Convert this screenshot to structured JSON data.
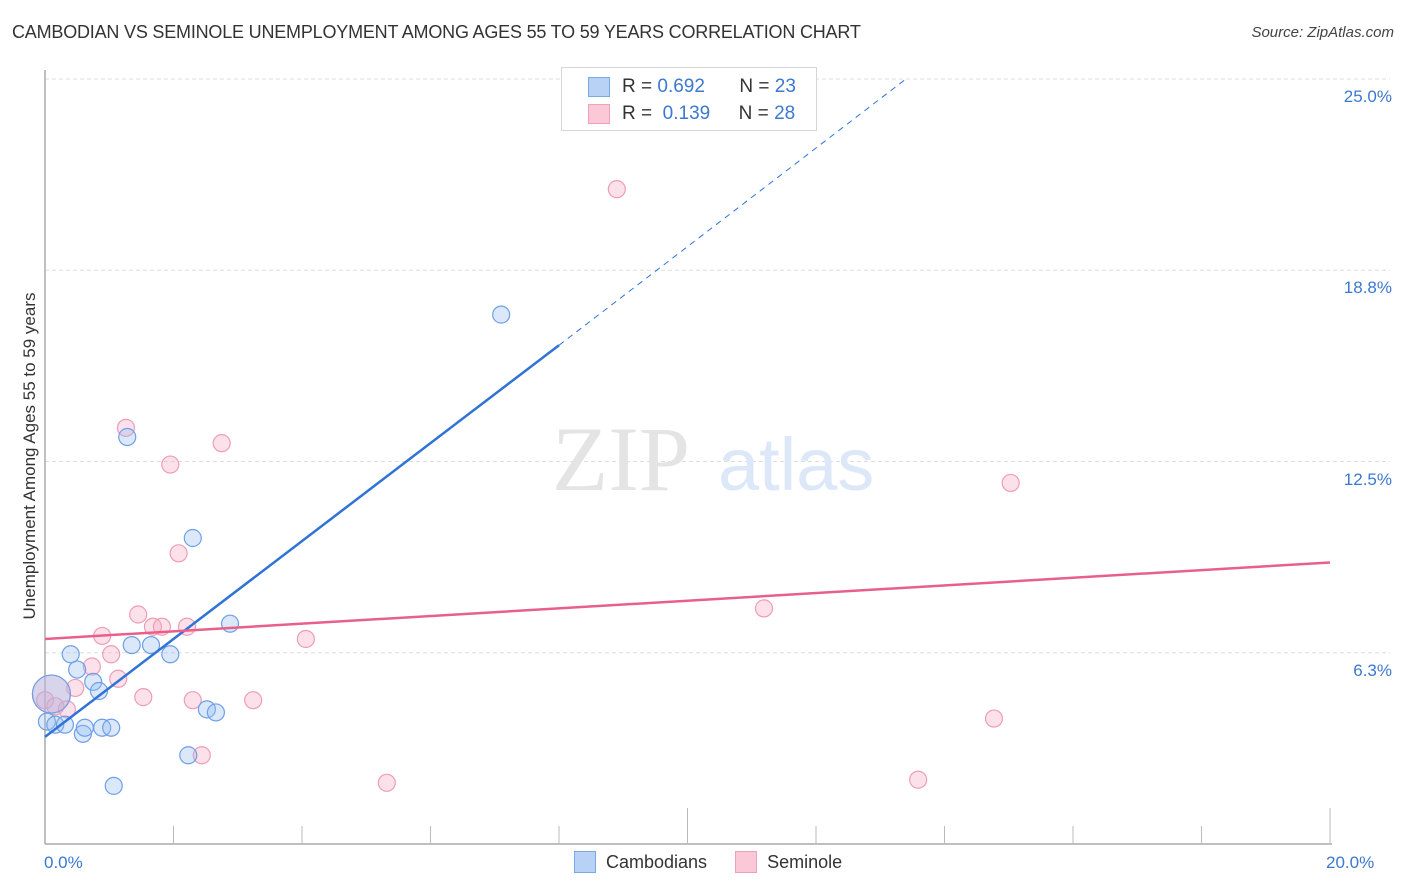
{
  "title": "CAMBODIAN VS SEMINOLE UNEMPLOYMENT AMONG AGES 55 TO 59 YEARS CORRELATION CHART",
  "source": "Source: ZipAtlas.com",
  "watermark": {
    "zip": "ZIP",
    "atlas": "atlas"
  },
  "colors": {
    "cambodians": "#7aa8e8",
    "seminole": "#f0a0b8",
    "cambodians_line": "#2f73d6",
    "seminole_line": "#e8608a",
    "tick_text": "#3b78d0"
  },
  "legend_top": [
    {
      "series": "Cambodians",
      "r_label": "R =",
      "r_value": "0.692",
      "n_label": "N =",
      "n_value": "23"
    },
    {
      "series": "Seminole",
      "r_label": "R =",
      "r_value": "0.139",
      "n_label": "N =",
      "n_value": "28"
    }
  ],
  "legend_bottom": [
    {
      "label": "Cambodians"
    },
    {
      "label": "Seminole"
    }
  ],
  "chart_data": {
    "type": "scatter",
    "title": "CAMBODIAN VS SEMINOLE UNEMPLOYMENT AMONG AGES 55 TO 59 YEARS CORRELATION CHART",
    "xlabel": "",
    "ylabel": "Unemployment Among Ages 55 to 59 years",
    "xlim": [
      0,
      20
    ],
    "ylim": [
      0,
      25
    ],
    "x_tick_labels": [
      "0.0%",
      "20.0%"
    ],
    "y_tick_labels": [
      "6.3%",
      "12.5%",
      "18.8%",
      "25.0%"
    ],
    "y_ticks": [
      6.25,
      12.5,
      18.75,
      25.0
    ],
    "grid": true,
    "legend_position": "top-center and bottom",
    "series": [
      {
        "name": "Cambodians",
        "R": 0.692,
        "N": 23,
        "trend": {
          "x0": 0,
          "y0": 3.5,
          "x1": 8.0,
          "y1": 16.3,
          "dashed_extension_to": {
            "x": 13.4,
            "y": 25.0
          }
        },
        "points": [
          {
            "x": 0.1,
            "y": 4.9,
            "size": "large"
          },
          {
            "x": 0.03,
            "y": 4.0
          },
          {
            "x": 0.16,
            "y": 3.9
          },
          {
            "x": 0.31,
            "y": 3.9
          },
          {
            "x": 0.4,
            "y": 6.2
          },
          {
            "x": 0.5,
            "y": 5.7
          },
          {
            "x": 0.75,
            "y": 5.3
          },
          {
            "x": 0.84,
            "y": 5.0
          },
          {
            "x": 0.59,
            "y": 3.6
          },
          {
            "x": 0.62,
            "y": 3.8
          },
          {
            "x": 0.89,
            "y": 3.8
          },
          {
            "x": 1.03,
            "y": 3.8
          },
          {
            "x": 1.07,
            "y": 1.9
          },
          {
            "x": 1.28,
            "y": 13.3
          },
          {
            "x": 1.35,
            "y": 6.5
          },
          {
            "x": 1.65,
            "y": 6.5
          },
          {
            "x": 1.95,
            "y": 6.2
          },
          {
            "x": 2.3,
            "y": 10.0
          },
          {
            "x": 2.88,
            "y": 7.2
          },
          {
            "x": 2.52,
            "y": 4.4
          },
          {
            "x": 2.66,
            "y": 4.3
          },
          {
            "x": 2.23,
            "y": 2.9
          },
          {
            "x": 7.1,
            "y": 17.3
          }
        ]
      },
      {
        "name": "Seminole",
        "R": 0.139,
        "N": 28,
        "trend": {
          "x0": 0,
          "y0": 6.7,
          "x1": 20,
          "y1": 9.2
        },
        "points": [
          {
            "x": 0.1,
            "y": 4.9,
            "size": "large"
          },
          {
            "x": 0.0,
            "y": 4.7
          },
          {
            "x": 0.16,
            "y": 4.5
          },
          {
            "x": 0.34,
            "y": 4.4
          },
          {
            "x": 0.47,
            "y": 5.1
          },
          {
            "x": 0.73,
            "y": 5.8
          },
          {
            "x": 0.89,
            "y": 6.8
          },
          {
            "x": 1.03,
            "y": 6.2
          },
          {
            "x": 1.14,
            "y": 5.4
          },
          {
            "x": 1.45,
            "y": 7.5
          },
          {
            "x": 1.68,
            "y": 7.1
          },
          {
            "x": 1.82,
            "y": 7.1
          },
          {
            "x": 2.21,
            "y": 7.1
          },
          {
            "x": 1.53,
            "y": 4.8
          },
          {
            "x": 2.3,
            "y": 4.7
          },
          {
            "x": 3.24,
            "y": 4.7
          },
          {
            "x": 1.26,
            "y": 13.6
          },
          {
            "x": 1.95,
            "y": 12.4
          },
          {
            "x": 2.75,
            "y": 13.1
          },
          {
            "x": 2.08,
            "y": 9.5
          },
          {
            "x": 2.44,
            "y": 2.9
          },
          {
            "x": 4.06,
            "y": 6.7
          },
          {
            "x": 5.32,
            "y": 2.0
          },
          {
            "x": 8.9,
            "y": 21.4
          },
          {
            "x": 11.19,
            "y": 7.7
          },
          {
            "x": 13.59,
            "y": 2.1
          },
          {
            "x": 14.77,
            "y": 4.1
          },
          {
            "x": 15.03,
            "y": 11.8
          }
        ]
      }
    ]
  },
  "axis": {
    "y_ticks": [
      {
        "label": "25.0%",
        "value": 25.0
      },
      {
        "label": "18.8%",
        "value": 18.75
      },
      {
        "label": "12.5%",
        "value": 12.5
      },
      {
        "label": "6.3%",
        "value": 6.25
      }
    ],
    "x_left_label": "0.0%",
    "x_right_label": "20.0%"
  }
}
